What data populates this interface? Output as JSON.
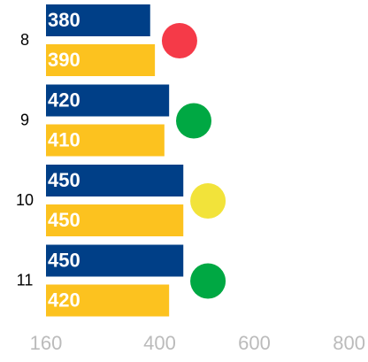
{
  "chart_data": {
    "type": "bar",
    "orientation": "horizontal",
    "categories": [
      "8",
      "9",
      "10",
      "11"
    ],
    "series": [
      {
        "color": "#003f87",
        "values": [
          380,
          420,
          450,
          450
        ]
      },
      {
        "color": "#fcc21f",
        "values": [
          390,
          410,
          450,
          420
        ]
      }
    ],
    "markers": {
      "values": [
        442,
        472,
        502,
        502
      ],
      "colors": [
        "#f53a48",
        "#00a843",
        "#f2e33a",
        "#00a843"
      ]
    },
    "xlim": [
      160,
      840
    ],
    "xticks": [
      160,
      400,
      600,
      800
    ]
  }
}
